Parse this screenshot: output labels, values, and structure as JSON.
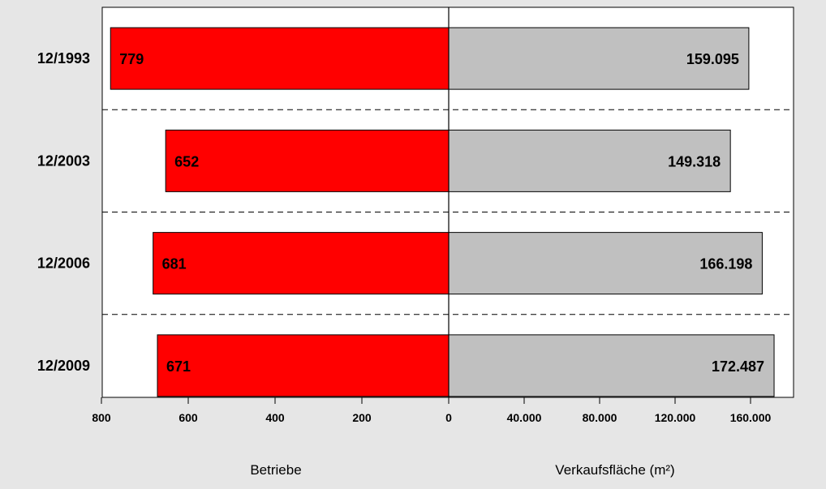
{
  "chart_data": {
    "type": "bar",
    "orientation": "horizontal",
    "layout": "butterfly",
    "categories": [
      "12/1993",
      "12/2003",
      "12/2006",
      "12/2009"
    ],
    "left_panel": {
      "series": [
        {
          "values": [
            779,
            652,
            681,
            671
          ]
        }
      ],
      "value_labels": [
        "779",
        "652",
        "681",
        "671"
      ],
      "xlim": [
        800,
        0
      ],
      "ticks": [
        800,
        600,
        400,
        200,
        0
      ],
      "tick_labels": [
        "800",
        "600",
        "400",
        "200",
        "0"
      ],
      "xlabel": "Betriebe",
      "color": "#ff0000"
    },
    "right_panel": {
      "series": [
        {
          "values": [
            159095,
            149318,
            166198,
            172487
          ]
        }
      ],
      "value_labels": [
        "159.095",
        "149.318",
        "166.198",
        "172.487"
      ],
      "xlim": [
        0,
        175000
      ],
      "ticks": [
        0,
        40000,
        80000,
        120000,
        160000
      ],
      "tick_labels": [
        "0",
        "40.000",
        "80.000",
        "120.000",
        "160.000"
      ],
      "xlabel": "Verkaufsfläche (m²)",
      "color": "#c0c0c0"
    },
    "grid": false,
    "row_separators": "dashed"
  }
}
